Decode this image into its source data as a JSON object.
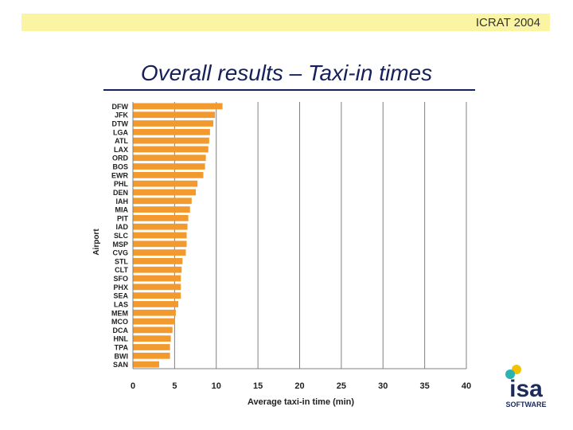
{
  "header": {
    "conference": "ICRAT 2004"
  },
  "slide": {
    "title": "Overall results – Taxi-in times"
  },
  "logo": {
    "name": "isa",
    "tagline": "SOFTWARE",
    "colors": {
      "dot_teal": "#2bb3b1",
      "dot_yellow": "#f2c200",
      "text": "#1d2a5e"
    }
  },
  "colors": {
    "bar": "#f29a2e",
    "title": "#16205a",
    "header_band": "#fbf4a3"
  },
  "chart_data": {
    "type": "bar",
    "orientation": "horizontal",
    "xlabel": "Average taxi-in time (min)",
    "ylabel": "Airport",
    "xlim": [
      0,
      40
    ],
    "xticks": [
      0,
      5,
      10,
      15,
      20,
      25,
      30,
      35,
      40
    ],
    "grid": "vertical major gridlines",
    "categories": [
      "DFW",
      "JFK",
      "DTW",
      "LGA",
      "ATL",
      "LAX",
      "ORD",
      "BOS",
      "EWR",
      "PHL",
      "DEN",
      "IAH",
      "MIA",
      "PIT",
      "IAD",
      "SLC",
      "MSP",
      "CVG",
      "STL",
      "CLT",
      "SFO",
      "PHX",
      "SEA",
      "LAS",
      "MEM",
      "MCO",
      "DCA",
      "HNL",
      "TPA",
      "BWI",
      "SAN"
    ],
    "values": [
      10.7,
      9.8,
      9.6,
      9.2,
      9.1,
      9.0,
      8.7,
      8.6,
      8.4,
      7.7,
      7.5,
      7.0,
      6.8,
      6.6,
      6.5,
      6.4,
      6.4,
      6.3,
      5.9,
      5.8,
      5.7,
      5.7,
      5.7,
      5.4,
      5.1,
      5.0,
      4.7,
      4.5,
      4.4,
      4.4,
      3.1
    ]
  }
}
